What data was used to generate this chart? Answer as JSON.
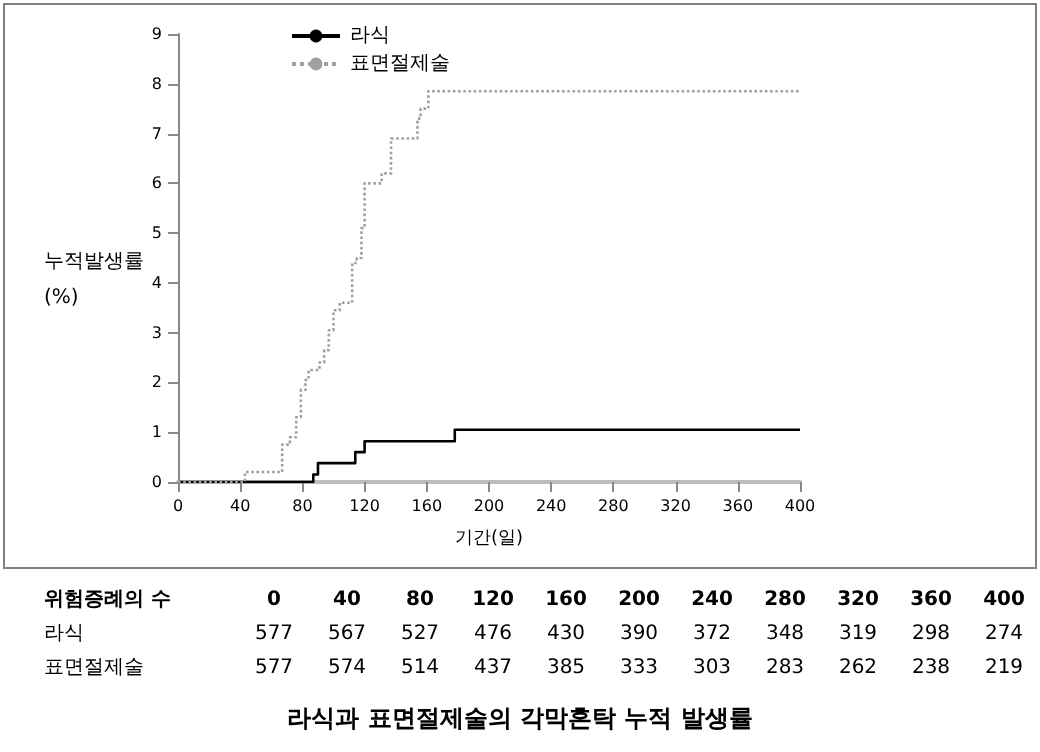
{
  "chart_data": {
    "type": "step",
    "title": "라식과 표면절제술의 각막혼탁 누적 발생률",
    "xlabel": "기간(일)",
    "ylabel": "누적발생률 (%)",
    "xlim": [
      0,
      400
    ],
    "xticks": [
      0,
      40,
      80,
      120,
      160,
      200,
      240,
      280,
      320,
      360,
      400
    ],
    "ylim": [
      0,
      9
    ],
    "yticks": [
      0,
      1,
      2,
      3,
      4,
      5,
      6,
      7,
      8,
      9
    ],
    "grid": false,
    "legend": "top left",
    "marker": "none",
    "series": [
      {
        "name": "라식",
        "color": "#000000",
        "line_style": "solid",
        "x": [
          0,
          87,
          90,
          114,
          120,
          178,
          400
        ],
        "values": [
          0,
          0.15,
          0.38,
          0.6,
          0.82,
          1.05,
          1.05
        ]
      },
      {
        "name": "표면절제술",
        "color": "#a0a0a0",
        "line_style": "dotted",
        "x": [
          0,
          43,
          67,
          72,
          76,
          79,
          82,
          84,
          91,
          94,
          97,
          100,
          104,
          112,
          115,
          118,
          120,
          131,
          137,
          154,
          156,
          161,
          400
        ],
        "values": [
          0,
          0.2,
          0.75,
          0.9,
          1.3,
          1.85,
          2.05,
          2.25,
          2.4,
          2.65,
          3.05,
          3.45,
          3.6,
          4.4,
          4.5,
          5.1,
          6.0,
          6.2,
          6.9,
          7.3,
          7.5,
          7.85,
          7.85
        ]
      }
    ],
    "annotations": [
      "위험증례의 수",
      "0",
      "40",
      "80",
      "120",
      "160",
      "200",
      "240",
      "280",
      "320",
      "360",
      "400",
      "라식",
      "577",
      "567",
      "527",
      "476",
      "430",
      "390",
      "372",
      "348",
      "319",
      "298",
      "274",
      "표면절제술",
      "577",
      "574",
      "514",
      "437",
      "385",
      "333",
      "303",
      "283",
      "262",
      "238",
      "219"
    ]
  }
}
